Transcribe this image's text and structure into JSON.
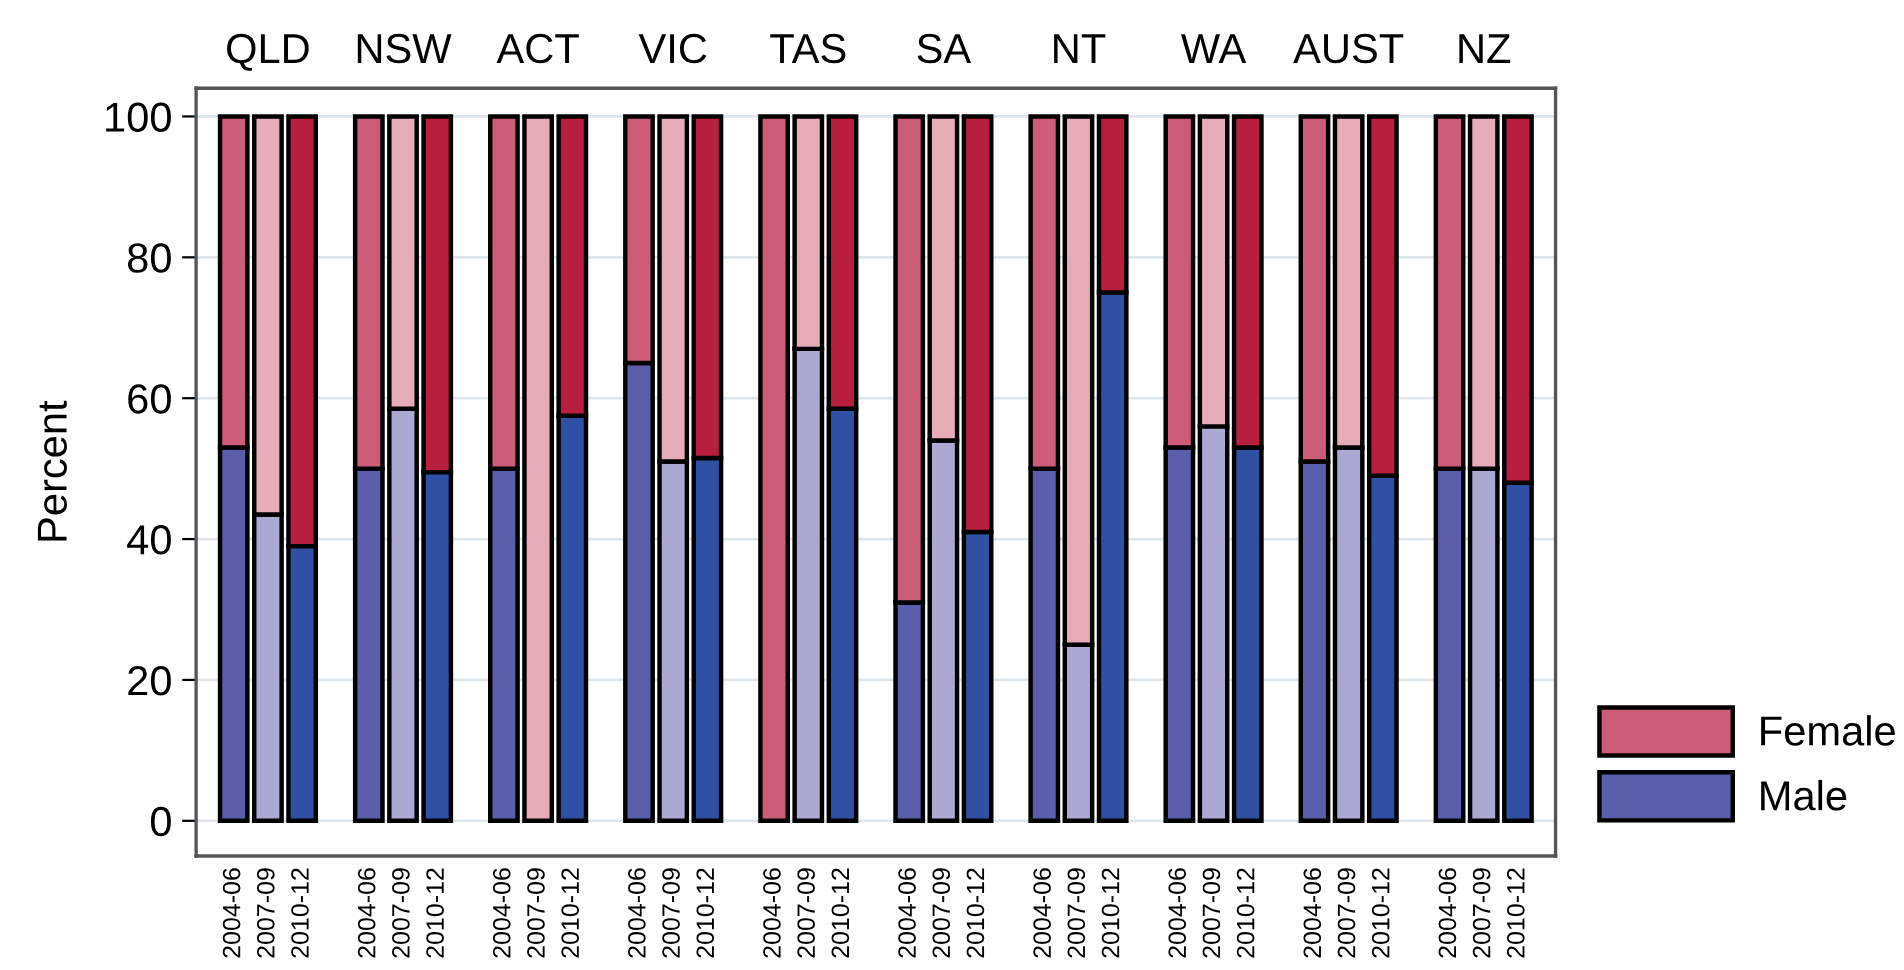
{
  "chart_data": {
    "type": "bar",
    "ylabel": "Percent",
    "stacked": true,
    "ylim": [
      -5,
      104
    ],
    "yticks": [
      0,
      20,
      40,
      60,
      80,
      100
    ],
    "grid": "y",
    "legend": "right",
    "annotations": [
      "QLD",
      "NSW",
      "ACT",
      "VIC",
      "TAS",
      "SA",
      "NT",
      "WA",
      "AUST",
      "NZ"
    ],
    "categories": [
      "2004-06",
      "2007-09",
      "2010-12",
      "2004-06",
      "2007-09",
      "2010-12",
      "2004-06",
      "2007-09",
      "2010-12",
      "2004-06",
      "2007-09",
      "2010-12",
      "2004-06",
      "2007-09",
      "2010-12",
      "2004-06",
      "2007-09",
      "2010-12",
      "2004-06",
      "2007-09",
      "2010-12",
      "2004-06",
      "2007-09",
      "2010-12",
      "2004-06",
      "2007-09",
      "2010-12",
      "2004-06",
      "2007-09",
      "2010-12"
    ],
    "series": [
      {
        "name": "Male",
        "color": "#5b5fab",
        "colors": [
          "#5b5fab",
          "#aba9d3",
          "#3050a3",
          "#5b5fab",
          "#aba9d3",
          "#3050a3",
          "#5b5fab",
          "#aba9d3",
          "#3050a3",
          "#5b5fab",
          "#aba9d3",
          "#3050a3",
          "#5b5fab",
          "#aba9d3",
          "#3050a3",
          "#5b5fab",
          "#aba9d3",
          "#3050a3",
          "#5b5fab",
          "#aba9d3",
          "#3050a3",
          "#5b5fab",
          "#aba9d3",
          "#3050a3",
          "#5b5fab",
          "#aba9d3",
          "#3050a3",
          "#5b5fab",
          "#aba9d3",
          "#3050a3"
        ],
        "values": [
          53,
          43.5,
          39,
          50,
          58.5,
          49.5,
          50,
          0,
          57.5,
          65,
          51,
          51.5,
          0,
          67,
          58.5,
          31,
          54,
          41,
          50,
          25,
          75,
          53,
          56,
          53,
          51,
          53,
          49,
          50,
          50,
          48
        ]
      },
      {
        "name": "Female",
        "color": "#cc5c78",
        "colors": [
          "#cc5c78",
          "#e7acb9",
          "#b81f3e",
          "#cc5c78",
          "#e7acb9",
          "#b81f3e",
          "#cc5c78",
          "#e7acb9",
          "#b81f3e",
          "#cc5c78",
          "#e7acb9",
          "#b81f3e",
          "#cc5c78",
          "#e7acb9",
          "#b81f3e",
          "#cc5c78",
          "#e7acb9",
          "#b81f3e",
          "#cc5c78",
          "#e7acb9",
          "#b81f3e",
          "#cc5c78",
          "#e7acb9",
          "#b81f3e",
          "#cc5c78",
          "#e7acb9",
          "#b81f3e",
          "#cc5c78",
          "#e7acb9",
          "#b81f3e"
        ],
        "values": [
          47,
          56.5,
          61,
          50,
          41.5,
          50.5,
          50,
          100,
          42.5,
          35,
          49,
          48.5,
          100,
          33,
          41.5,
          69,
          46,
          59,
          50,
          75,
          25,
          47,
          44,
          47,
          49,
          47,
          51,
          50,
          50,
          52
        ]
      }
    ]
  }
}
